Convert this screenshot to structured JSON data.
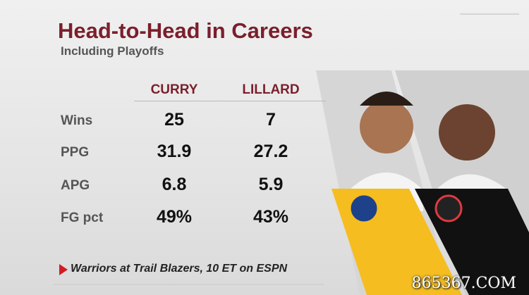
{
  "header": {
    "title": "Head-to-Head in Careers",
    "subtitle": "Including Playoffs"
  },
  "table": {
    "columns": [
      "CURRY",
      "LILLARD"
    ],
    "rows": [
      [
        "Wins",
        "25",
        "7"
      ],
      [
        "PPG",
        "31.9",
        "27.2"
      ],
      [
        "APG",
        "6.8",
        "5.9"
      ],
      [
        "FG pct",
        "49%",
        "43%"
      ]
    ]
  },
  "footer": {
    "text": "Warriors at Trail Blazers, 10 ET on ESPN"
  },
  "watermark": "865367.COM"
}
